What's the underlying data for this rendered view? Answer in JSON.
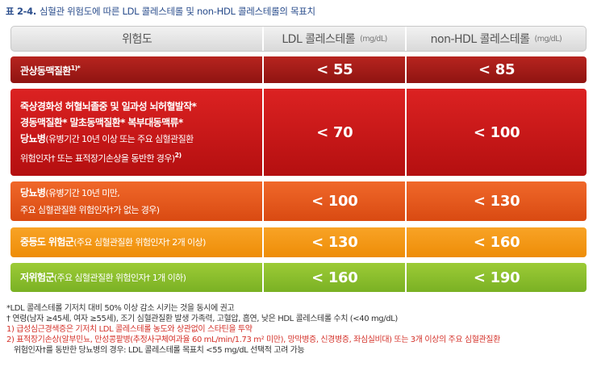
{
  "title": {
    "number": "표 2-4.",
    "text": "심혈관 위험도에 따른 LDL 콜레스테롤 및 non-HDL 콜레스테롤의 목표치"
  },
  "header": {
    "risk": "위험도",
    "ldl": "LDL 콜레스테롤",
    "ldl_unit": "(mg/dL)",
    "nonhdl": "non-HDL 콜레스테롤",
    "nonhdl_unit": "(mg/dL)"
  },
  "rows": [
    {
      "label_line1": "관상동맥질환",
      "sup": "1)*",
      "ldl": "< 55",
      "nonhdl": "< 85",
      "color": "#a51c18"
    },
    {
      "line1": "죽상경화성 허혈뇌졸중 및 일과성 뇌허혈발작*",
      "line2": "경동맥질환*  말초동맥질환*  복부대동맥류*",
      "line3_bold": "당뇨병",
      "line3_rest": "(유병기간 10년 이상 또는 주요 심혈관질환",
      "line4": "위험인자† 또는 표적장기손상을 동반한 경우)",
      "line4_sup": "2)",
      "ldl": "< 70",
      "nonhdl": "< 100",
      "color": "#cc1a1a"
    },
    {
      "line1_bold": "당뇨병",
      "line1_rest": "(유병기간 10년 미만,",
      "line2": "주요 심혈관질환 위험인자†가 없는 경우)",
      "ldl": "< 100",
      "nonhdl": "< 130",
      "color": "#e85a1e"
    },
    {
      "label_bold": "중등도 위험군",
      "label_rest": "(주요 심혈관질환 위험인자† 2개 이상)",
      "ldl": "< 130",
      "nonhdl": "< 160",
      "color": "#f39817"
    },
    {
      "label_bold": "저위험군",
      "label_rest": "(주요 심혈관질환 위험인자† 1개 이하)",
      "ldl": "< 160",
      "nonhdl": "< 190",
      "color": "#8cbf2e"
    }
  ],
  "notes": [
    "*LDL 콜레스테롤 기저치 대비 50% 이상 감소 시키는 것을 동시에 권고",
    "† 연령(남자 ≥45세, 여자 ≥55세), 조기 심혈관질환 발생 가족력, 고혈압, 흡연, 낮은 HDL 콜레스테롤 수치 (<40 mg/dL)",
    "1) 급성심근경색증은 기저치 LDL 콜레스테롤 농도와 상관없이 스타틴을 투약",
    "2) 표적장기손상(알부민뇨, 만성콩팥병(추정사구체여과율 60 mL/min/1.73 m² 미만), 망막병증, 신경병증, 좌심실비대) 또는 3개 이상의 주요 심혈관질환",
    "위험인자†를 동반한 당뇨병의 경우: LDL 콜레스테롤 목표치 <55 mg/dL 선택적 고려 가능"
  ]
}
